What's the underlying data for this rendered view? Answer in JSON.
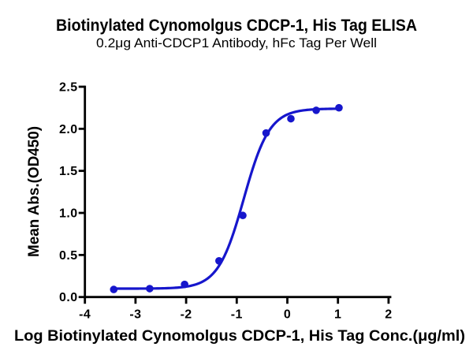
{
  "title": "Biotinylated Cynomolgus CDCP-1, His Tag ELISA",
  "subtitle": "0.2μg Anti-CDCP1 Antibody, hFc Tag Per Well",
  "chart_data": {
    "type": "scatter",
    "title": "Biotinylated Cynomolgus CDCP-1, His Tag ELISA",
    "subtitle": "0.2μg Anti-CDCP1 Antibody, hFc Tag Per Well",
    "xlabel": "Log Biotinylated Cynomolgus CDCP-1, His Tag Conc.(μg/ml)",
    "ylabel": "Mean Abs.(OD450)",
    "xlim": [
      -4,
      2
    ],
    "ylim": [
      0,
      2.5
    ],
    "x_ticks": [
      -4,
      -3,
      -2,
      -1,
      0,
      1,
      2
    ],
    "x_tick_labels": [
      "-4",
      "-3",
      "-2",
      "-1",
      "0",
      "1",
      "2"
    ],
    "y_ticks": [
      0,
      0.5,
      1,
      1.5,
      2,
      2.5
    ],
    "y_tick_labels": [
      "0.0",
      "0.5",
      "1.0",
      "1.5",
      "2.0",
      "2.5"
    ],
    "grid": false,
    "legend": false,
    "series": [
      {
        "name": "Biotinylated Cynomolgus CDCP-1, His Tag",
        "color": "#1616cc",
        "marker": "circle",
        "x": [
          -3.43,
          -2.72,
          -2.03,
          -1.35,
          -0.88,
          -0.42,
          0.07,
          0.57,
          1.02
        ],
        "y": [
          0.09,
          0.1,
          0.15,
          0.43,
          0.97,
          1.95,
          2.12,
          2.22,
          2.25
        ]
      }
    ],
    "fit_curve": {
      "model": "4PL sigmoidal",
      "bottom": 0.1,
      "top": 2.24,
      "log_ec50": -0.86,
      "hill_slope": 1.71,
      "x_start": -3.43,
      "x_end": 1.02,
      "color": "#1616cc"
    },
    "axis_color": "#000000"
  }
}
